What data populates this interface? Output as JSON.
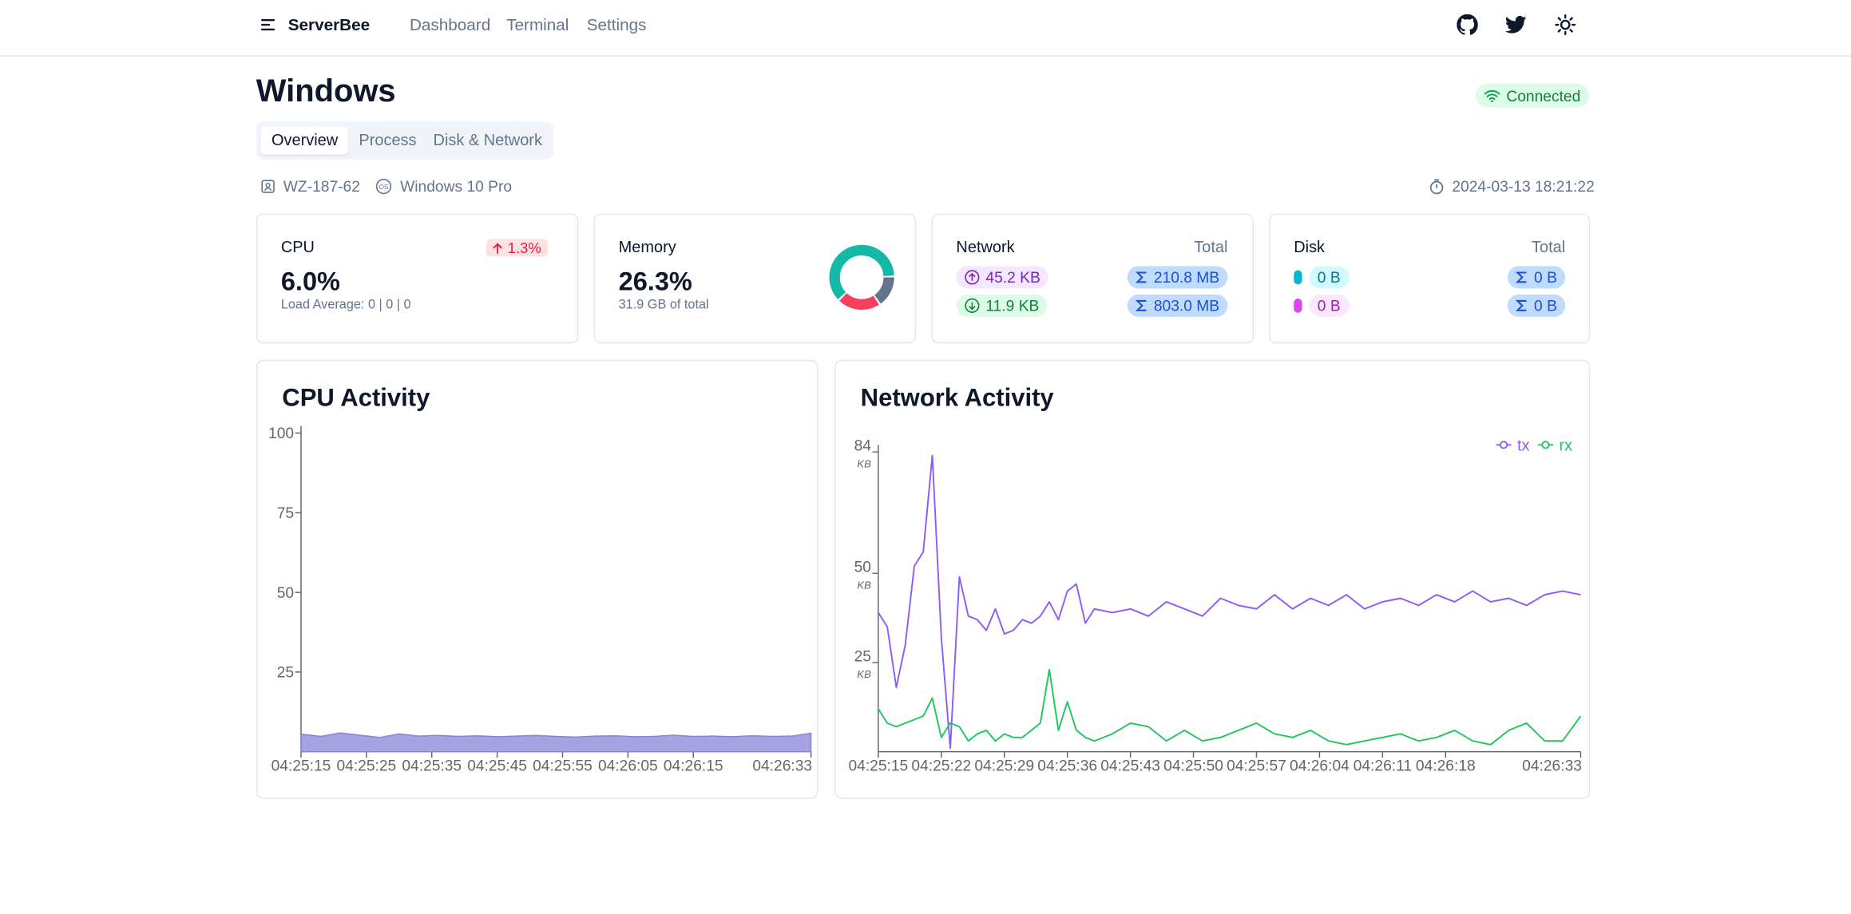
{
  "header": {
    "brand": "ServerBee",
    "nav": [
      "Dashboard",
      "Terminal",
      "Settings"
    ]
  },
  "page": {
    "title": "Windows",
    "status": "Connected",
    "tabs": [
      "Overview",
      "Process",
      "Disk & Network"
    ],
    "active_tab": 0
  },
  "info": {
    "host": "WZ-187-62",
    "os": "Windows 10 Pro",
    "time": "2024-03-13 18:21:22"
  },
  "cards": {
    "cpu": {
      "label": "CPU",
      "change": "1.3%",
      "value": "6.0%",
      "detail": "Load Average: 0 | 0 | 0"
    },
    "memory": {
      "label": "Memory",
      "value": "26.3%",
      "detail": "31.9 GB of total",
      "donut": {
        "values": [
          62,
          16,
          22
        ],
        "colors": [
          "#14b8a6",
          "#64748b",
          "#f43f5e"
        ]
      }
    },
    "network": {
      "label": "Network",
      "total_label": "Total",
      "up": "45.2 KB",
      "down": "11.9 KB",
      "up_total": "210.8 MB",
      "down_total": "803.0 MB"
    },
    "disk": {
      "label": "Disk",
      "total_label": "Total",
      "read": "0 B",
      "write": "0 B",
      "read_total": "0 B",
      "write_total": "0 B"
    }
  },
  "chart_data": [
    {
      "type": "area",
      "title": "CPU Activity",
      "x": [
        "04:25:15",
        "04:25:18",
        "04:25:21",
        "04:25:24",
        "04:25:27",
        "04:25:30",
        "04:25:33",
        "04:25:36",
        "04:25:39",
        "04:25:42",
        "04:25:45",
        "04:25:48",
        "04:25:51",
        "04:25:54",
        "04:25:57",
        "04:26:00",
        "04:26:03",
        "04:26:06",
        "04:26:09",
        "04:26:12",
        "04:26:15",
        "04:26:18",
        "04:26:21",
        "04:26:24",
        "04:26:27",
        "04:26:30",
        "04:26:33"
      ],
      "series": [
        {
          "name": "cpu",
          "color": "#8884d8",
          "values": [
            5.5,
            4.8,
            5.9,
            5.2,
            4.5,
            5.6,
            4.9,
            5.1,
            4.8,
            5.0,
            4.7,
            4.9,
            5.1,
            4.8,
            4.6,
            4.9,
            5.0,
            4.7,
            4.8,
            5.2,
            4.8,
            4.9,
            4.7,
            5.0,
            4.8,
            4.9,
            5.8
          ]
        }
      ],
      "xlim": [
        "04:25:15",
        "04:26:33"
      ],
      "xticks": [
        "04:25:15",
        "04:25:25",
        "04:25:35",
        "04:25:45",
        "04:25:55",
        "04:26:05",
        "04:26:15",
        "04:26:33"
      ],
      "ylim": [
        0,
        100
      ],
      "yticks": [
        25,
        50,
        75,
        100
      ]
    },
    {
      "type": "line",
      "title": "Network Activity",
      "y_unit": "KB",
      "legend": "top-right",
      "x": [
        "04:25:15",
        "04:25:16",
        "04:25:17",
        "04:25:18",
        "04:25:19",
        "04:25:20",
        "04:25:21",
        "04:25:22",
        "04:25:23",
        "04:25:24",
        "04:25:25",
        "04:25:26",
        "04:25:27",
        "04:25:28",
        "04:25:29",
        "04:25:30",
        "04:25:31",
        "04:25:32",
        "04:25:33",
        "04:25:34",
        "04:25:35",
        "04:25:36",
        "04:25:37",
        "04:25:38",
        "04:25:39",
        "04:25:41",
        "04:25:43",
        "04:25:45",
        "04:25:47",
        "04:25:49",
        "04:25:51",
        "04:25:53",
        "04:25:55",
        "04:25:57",
        "04:25:59",
        "04:26:01",
        "04:26:03",
        "04:26:05",
        "04:26:07",
        "04:26:09",
        "04:26:11",
        "04:26:13",
        "04:26:15",
        "04:26:17",
        "04:26:19",
        "04:26:21",
        "04:26:23",
        "04:26:25",
        "04:26:27",
        "04:26:29",
        "04:26:31",
        "04:26:33"
      ],
      "series": [
        {
          "name": "tx",
          "color": "#8b5cf6",
          "values": [
            39,
            35,
            18,
            30,
            52,
            56,
            83,
            32,
            1,
            49,
            38,
            37,
            34,
            40,
            33,
            34,
            37,
            36,
            38,
            42,
            37,
            45,
            47,
            36,
            40,
            39,
            40,
            38,
            42,
            40,
            38,
            43,
            41,
            40,
            44,
            40,
            43,
            41,
            44,
            40,
            42,
            43,
            41,
            44,
            42,
            45,
            42,
            43,
            41,
            44,
            45,
            44
          ]
        },
        {
          "name": "rx",
          "color": "#22c55e",
          "values": [
            12,
            8,
            7,
            8,
            9,
            10,
            15,
            4,
            8,
            7,
            3,
            5,
            6,
            3,
            5,
            4,
            4,
            6,
            8,
            23,
            6,
            14,
            6,
            4,
            3,
            5,
            8,
            7,
            3,
            6,
            3,
            4,
            6,
            8,
            5,
            4,
            6,
            3,
            2,
            3,
            4,
            5,
            3,
            4,
            6,
            3,
            2,
            6,
            8,
            3,
            3,
            10
          ]
        }
      ],
      "xlim": [
        "04:25:15",
        "04:26:33"
      ],
      "xticks": [
        "04:25:15",
        "04:25:22",
        "04:25:29",
        "04:25:36",
        "04:25:43",
        "04:25:50",
        "04:25:57",
        "04:26:04",
        "04:26:11",
        "04:26:18",
        "04:26:33"
      ],
      "ylim": [
        0,
        84
      ],
      "yticks": [
        25,
        50,
        84
      ]
    }
  ]
}
